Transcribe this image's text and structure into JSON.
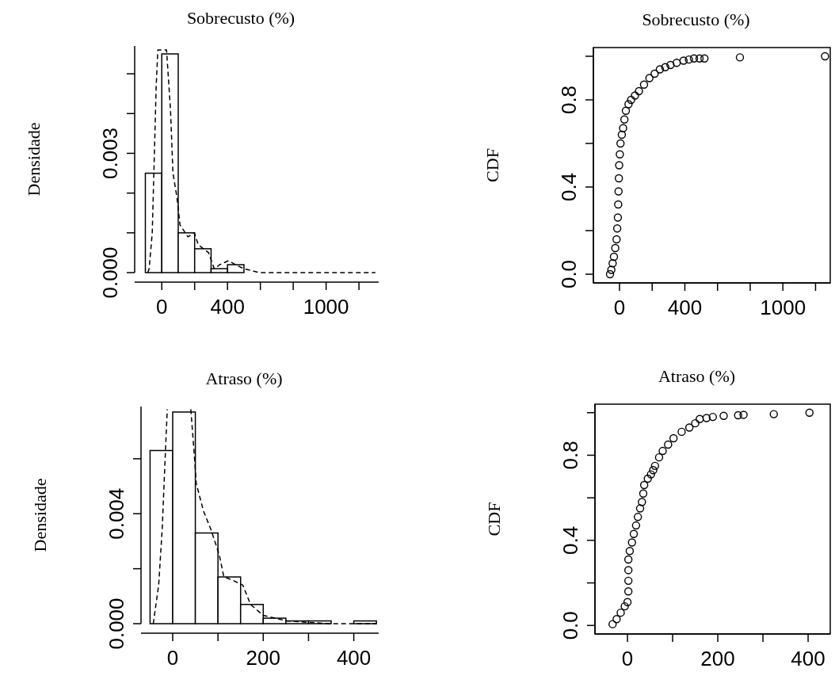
{
  "chart_data": [
    {
      "type": "histogram",
      "title": "Sobrecusto (%)",
      "ylabel": "Densidade",
      "bins": [
        -100,
        0,
        100,
        200,
        300,
        400,
        500,
        600,
        700,
        800,
        900,
        1000,
        1100,
        1200,
        1300
      ],
      "values": [
        0.0025,
        0.0055,
        0.001,
        0.0006,
        0.0001,
        0.0002,
        0,
        0,
        0,
        0,
        0,
        0,
        0,
        0
      ],
      "series": [
        {
          "type": "line",
          "color": "#000000",
          "line_style": "dashed",
          "x": [
            -85,
            -77,
            -58,
            -34,
            -24,
            29,
            53,
            68,
            92,
            111,
            159,
            198,
            222,
            285,
            319,
            353,
            406,
            449,
            498,
            594,
            700,
            1200,
            1270,
            1300
          ],
          "values": [
            0,
            0.0001,
            0.001,
            0.0047,
            0.0056,
            0.0056,
            0.0041,
            0.0025,
            0.0019,
            0.0012,
            0.0009,
            0.001,
            0.0007,
            0.0005,
            0.0001,
            0.0002,
            0.0003,
            0.0002,
            0.0001,
            0,
            0,
            0,
            0,
            0
          ]
        }
      ],
      "xlim": [
        -165,
        1320
      ],
      "ylim": [
        0,
        0.0057
      ],
      "xticks": [
        0,
        {
          "value": 200,
          "label": null
        },
        400,
        {
          "value": 600,
          "label": null
        },
        {
          "value": 800,
          "label": null
        },
        1000,
        {
          "value": 1200,
          "label": null
        }
      ],
      "yticks": [
        {
          "value": 0,
          "label": "0.000"
        },
        {
          "value": 0.001,
          "label": null
        },
        {
          "value": 0.002,
          "label": null
        },
        {
          "value": 0.003,
          "label": "0.003"
        },
        {
          "value": 0.004,
          "label": null
        },
        {
          "value": 0.005,
          "label": null
        }
      ]
    },
    {
      "type": "scatter",
      "title": "Sobrecusto (%)",
      "ylabel": "CDF",
      "marker": "circle",
      "series": [
        {
          "color": "#000000",
          "x": [
            -58,
            -50,
            -42,
            -34,
            -26,
            -18,
            -14,
            -10,
            -8,
            -6,
            -4,
            -2,
            2,
            6,
            14,
            22,
            30,
            39,
            55,
            71,
            95,
            119,
            150,
            183,
            215,
            247,
            280,
            312,
            350,
            392,
            425,
            456,
            490,
            520,
            737,
            1258
          ],
          "values": [
            0,
            0.02,
            0.05,
            0.08,
            0.12,
            0.16,
            0.21,
            0.26,
            0.32,
            0.38,
            0.44,
            0.5,
            0.55,
            0.6,
            0.64,
            0.67,
            0.71,
            0.75,
            0.78,
            0.8,
            0.82,
            0.84,
            0.87,
            0.9,
            0.92,
            0.94,
            0.95,
            0.96,
            0.97,
            0.98,
            0.985,
            0.99,
            0.99,
            0.99,
            0.995,
            1.0
          ]
        }
      ],
      "xlim": [
        -160,
        1290
      ],
      "ylim": [
        -0.04,
        1.04
      ],
      "xticks": [
        0,
        {
          "value": 200,
          "label": null
        },
        400,
        {
          "value": 600,
          "label": null
        },
        {
          "value": 800,
          "label": null
        },
        1000,
        {
          "value": 1200,
          "label": null
        }
      ],
      "yticks": [
        {
          "value": 0,
          "label": "0.0"
        },
        {
          "value": 0.2,
          "label": null
        },
        {
          "value": 0.4,
          "label": "0.4"
        },
        {
          "value": 0.6,
          "label": null
        },
        {
          "value": 0.8,
          "label": "0.8"
        },
        {
          "value": 1.0,
          "label": null
        }
      ]
    },
    {
      "type": "histogram",
      "title": "Atraso (%)",
      "ylabel": "Densidade",
      "bins": [
        -50,
        0,
        50,
        100,
        150,
        200,
        250,
        300,
        350,
        400,
        450
      ],
      "values": [
        0.0063,
        0.0077,
        0.0033,
        0.0017,
        0.0007,
        0.0002,
        0.0001,
        0.0001,
        0,
        0.0001
      ],
      "series": [
        {
          "type": "line",
          "color": "#000000",
          "line_style": "dashed",
          "x": [
            -43,
            -31,
            -23,
            -17,
            -12,
            null,
            40,
            47,
            52,
            68,
            85,
            103,
            113,
            130,
            155,
            172,
            200,
            252,
            346,
            450
          ],
          "values": [
            0,
            0.0014,
            0.0035,
            0.0059,
            0.0078,
            null,
            0.0078,
            0.0063,
            0.0051,
            0.0041,
            0.0034,
            0.0025,
            0.0017,
            0.0016,
            0.0014,
            0.0007,
            0.0003,
            0.0001,
            0,
            0
          ]
        }
      ],
      "xlim": [
        -70,
        455
      ],
      "ylim": [
        0,
        0.0079
      ],
      "xticks": [
        0,
        {
          "value": 100,
          "label": null
        },
        200,
        {
          "value": 300,
          "label": null
        },
        400
      ],
      "yticks": [
        {
          "value": 0,
          "label": "0.000"
        },
        {
          "value": 0.002,
          "label": null
        },
        {
          "value": 0.004,
          "label": "0.004"
        },
        {
          "value": 0.006,
          "label": null
        }
      ]
    },
    {
      "type": "scatter",
      "title": "Atraso (%)",
      "ylabel": "CDF",
      "marker": "circle",
      "series": [
        {
          "color": "#000000",
          "x": [
            -33,
            -24,
            -15,
            -6,
            0,
            2,
            2,
            2,
            2,
            5,
            10,
            14,
            19,
            23,
            28,
            32,
            35,
            37,
            45,
            52,
            57,
            61,
            70,
            78,
            90,
            102,
            120,
            137,
            150,
            160,
            175,
            189,
            213,
            245,
            257,
            324,
            403
          ],
          "values": [
            0.006,
            0.03,
            0.06,
            0.09,
            0.11,
            0.16,
            0.21,
            0.26,
            0.31,
            0.35,
            0.39,
            0.43,
            0.47,
            0.51,
            0.55,
            0.58,
            0.62,
            0.66,
            0.69,
            0.71,
            0.73,
            0.75,
            0.79,
            0.82,
            0.85,
            0.88,
            0.91,
            0.93,
            0.95,
            0.97,
            0.975,
            0.98,
            0.985,
            0.988,
            0.99,
            0.993,
            1.0
          ]
        }
      ],
      "xlim": [
        -72,
        449
      ],
      "ylim": [
        -0.04,
        1.04
      ],
      "xticks": [
        0,
        {
          "value": 100,
          "label": null
        },
        200,
        {
          "value": 300,
          "label": null
        },
        400
      ],
      "yticks": [
        {
          "value": 0,
          "label": "0.0"
        },
        {
          "value": 0.2,
          "label": null
        },
        {
          "value": 0.4,
          "label": "0.4"
        },
        {
          "value": 0.6,
          "label": null
        },
        {
          "value": 0.8,
          "label": "0.8"
        },
        {
          "value": 1.0,
          "label": null
        }
      ]
    }
  ]
}
